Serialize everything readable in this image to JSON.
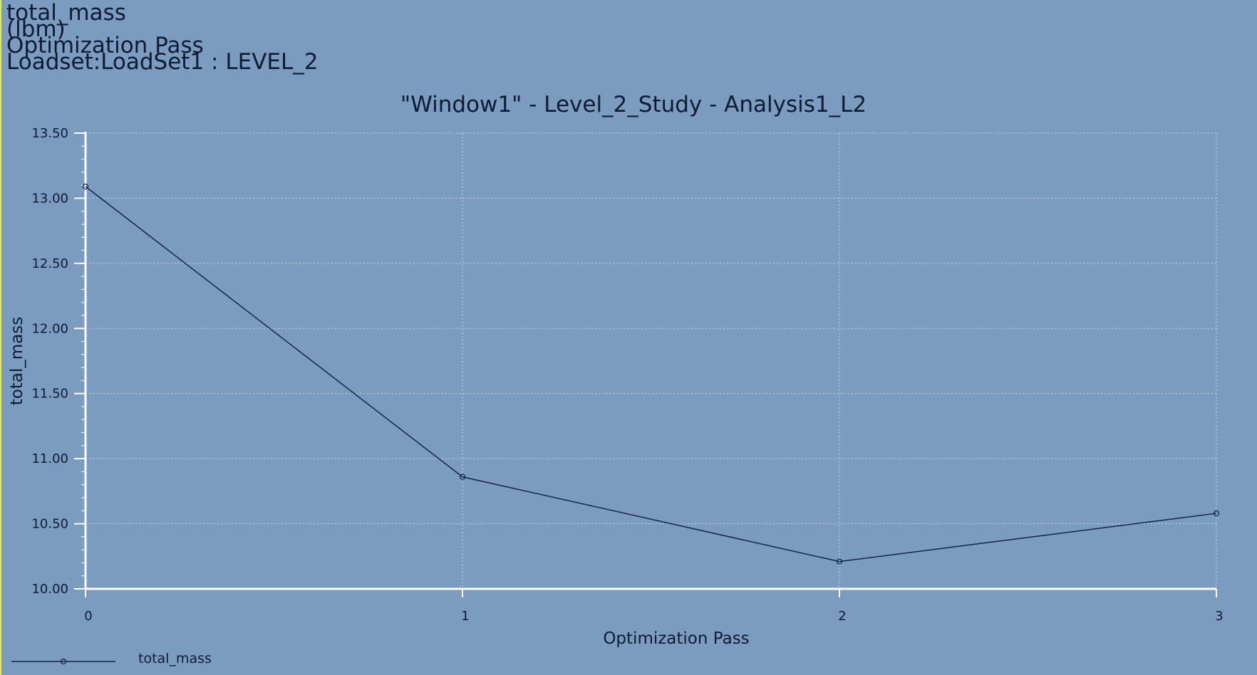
{
  "header": {
    "lines": [
      "total_mass",
      "(lbm)",
      "Optimization Pass",
      "Loadset:LoadSet1 :  LEVEL_2"
    ]
  },
  "colors": {
    "background": "#7b9bbf",
    "axis": "#ffffff",
    "grid": "#c7d6ea",
    "series": "#16254a",
    "text": "#0e1c34",
    "left_border": "#dfe86a"
  },
  "chart_data": {
    "type": "line",
    "title": "\"Window1\" - Level_2_Study - Analysis1_L2",
    "xlabel": "Optimization Pass",
    "ylabel": "total_mass",
    "x": [
      0,
      1,
      2,
      3
    ],
    "xticks": [
      "0",
      "1",
      "2",
      "3"
    ],
    "xlim": [
      0,
      3
    ],
    "yticks": [
      "10.00",
      "10.50",
      "11.00",
      "11.50",
      "12.00",
      "12.50",
      "13.00",
      "13.50"
    ],
    "ylim": [
      10.0,
      13.5
    ],
    "grid": true,
    "series": [
      {
        "name": "total_mass",
        "values": [
          13.09,
          10.86,
          10.21,
          10.58
        ],
        "marker": "circle"
      }
    ],
    "legend": {
      "placement": "bottom-left",
      "entries": [
        "total_mass"
      ]
    }
  }
}
